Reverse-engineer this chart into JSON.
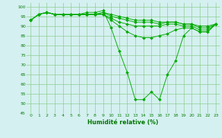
{
  "x": [
    0,
    1,
    2,
    3,
    4,
    5,
    6,
    7,
    8,
    9,
    10,
    11,
    12,
    13,
    14,
    15,
    16,
    17,
    18,
    19,
    20,
    21,
    22,
    23
  ],
  "series": [
    [
      93,
      96,
      97,
      96,
      96,
      96,
      96,
      97,
      97,
      98,
      89,
      77,
      66,
      52,
      52,
      56,
      52,
      65,
      72,
      85,
      89,
      87,
      87,
      91
    ],
    [
      93,
      96,
      97,
      96,
      96,
      96,
      96,
      96,
      96,
      96,
      93,
      90,
      87,
      85,
      84,
      84,
      85,
      86,
      88,
      89,
      89,
      87,
      87,
      91
    ],
    [
      93,
      96,
      97,
      96,
      96,
      96,
      96,
      96,
      96,
      96,
      94,
      92,
      91,
      90,
      90,
      90,
      90,
      91,
      91,
      90,
      90,
      88,
      88,
      91
    ],
    [
      93,
      96,
      97,
      96,
      96,
      96,
      96,
      96,
      96,
      97,
      95,
      94,
      93,
      92,
      92,
      92,
      91,
      92,
      92,
      91,
      91,
      89,
      89,
      91
    ],
    [
      93,
      96,
      97,
      96,
      96,
      96,
      96,
      96,
      96,
      97,
      96,
      95,
      94,
      93,
      93,
      93,
      92,
      92,
      92,
      91,
      91,
      90,
      90,
      91
    ]
  ],
  "line_color": "#00aa00",
  "marker_color": "#00aa00",
  "bg_color": "#d4f0f0",
  "grid_color": "#88cc88",
  "xlabel": "Humidité relative (%)",
  "ylim": [
    45,
    102
  ],
  "yticks": [
    45,
    50,
    55,
    60,
    65,
    70,
    75,
    80,
    85,
    90,
    95,
    100
  ],
  "xlabel_color": "#007700",
  "tick_color": "#007700",
  "linewidth": 0.7,
  "markersize": 2.0
}
